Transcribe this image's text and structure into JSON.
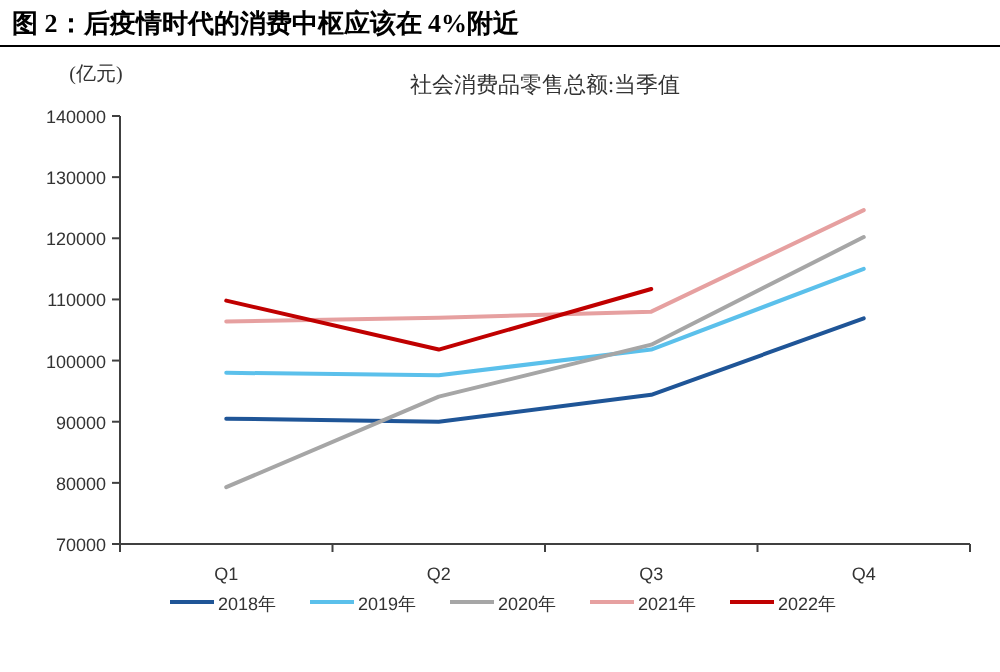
{
  "chart_data": {
    "type": "line",
    "title": "图 2：后疫情时代的消费中枢应该在 4%附近",
    "subtitle": "社会消费品零售总额:当季值",
    "ylabel": "(亿元)",
    "categories": [
      "Q1",
      "Q2",
      "Q3",
      "Q4"
    ],
    "series": [
      {
        "name": "2018年",
        "color": "#1f5597",
        "values": [
          90500,
          90000,
          94400,
          106900
        ]
      },
      {
        "name": "2019年",
        "color": "#5bc0eb",
        "values": [
          98000,
          97600,
          101800,
          115000
        ]
      },
      {
        "name": "2020年",
        "color": "#a6a6a6",
        "values": [
          79300,
          94100,
          102600,
          120200
        ]
      },
      {
        "name": "2021年",
        "color": "#e6a0a0",
        "values": [
          106400,
          107000,
          108000,
          124600
        ]
      },
      {
        "name": "2022年",
        "color": "#c00000",
        "values": [
          109800,
          101800,
          111700,
          null
        ]
      }
    ],
    "ylim": [
      70000,
      140000
    ],
    "yticks": [
      70000,
      80000,
      90000,
      100000,
      110000,
      120000,
      130000,
      140000
    ],
    "legend": "bottom",
    "grid": false
  }
}
